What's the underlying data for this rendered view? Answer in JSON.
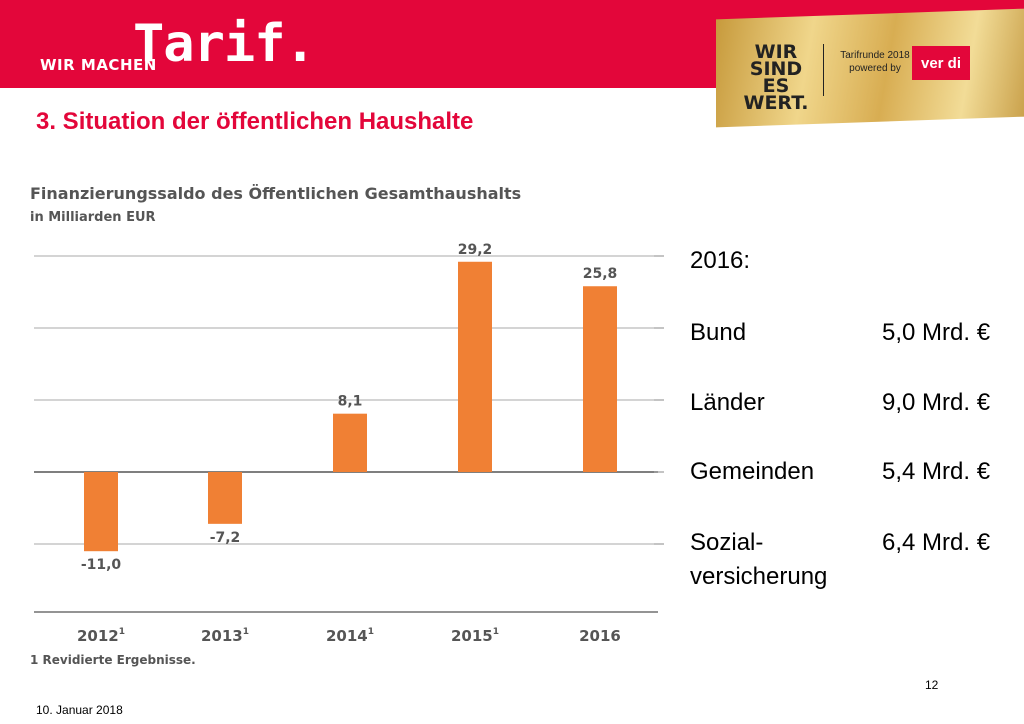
{
  "header": {
    "brand_small": "WIR MACHEN",
    "brand_big": "Tarif.",
    "campaign": [
      "WIR",
      "SIND ES",
      "WERT."
    ],
    "tarifrunde": [
      "Tarifrunde 2018",
      "powered by"
    ],
    "verdi": "ver di",
    "accent_color": "#e3063a"
  },
  "slide": {
    "title": "3. Situation der öffentlichen Haushalte",
    "page_number": "12",
    "date": "10. Januar 2018"
  },
  "chart_data": {
    "type": "bar",
    "title": "Finanzierungssaldo des Öffentlichen Gesamthaushalts",
    "subtitle": "in Milliarden EUR",
    "categories": [
      "2012",
      "2013",
      "2014",
      "2015",
      "2016"
    ],
    "category_notes": [
      "1",
      "1",
      "1",
      "1",
      ""
    ],
    "values": [
      -11.0,
      -7.2,
      8.1,
      29.2,
      25.8
    ],
    "value_labels": [
      "-11,0",
      "-7,2",
      "8,1",
      "29,2",
      "25,8"
    ],
    "ylim": [
      -15,
      30
    ],
    "gridline_values": [
      30,
      20,
      10,
      0,
      -10
    ],
    "grid": true,
    "bar_color": "#f08034",
    "footnote": "1 Revidierte Ergebnisse."
  },
  "breakdown": {
    "year_label": "2016:",
    "rows": [
      {
        "name": "Bund",
        "value": "5,0 Mrd. €"
      },
      {
        "name": "Länder",
        "value": "9,0 Mrd. €"
      },
      {
        "name": "Gemeinden",
        "value": "5,4 Mrd. €"
      },
      {
        "name": "Sozial-\nversicherung",
        "value": "6,4 Mrd. €"
      }
    ]
  }
}
